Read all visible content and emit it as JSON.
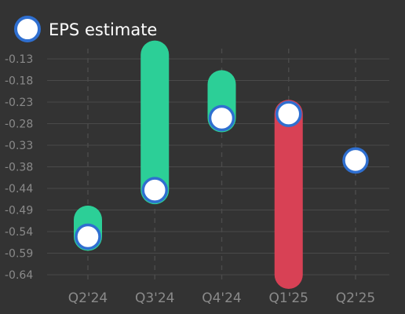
{
  "chart_data": {
    "type": "range-bar-scatter",
    "legend": {
      "label": "EPS estimate",
      "placement": "top-left"
    },
    "categories": [
      "Q2'24",
      "Q3'24",
      "Q4'24",
      "Q1'25",
      "Q2'25"
    ],
    "series": [
      {
        "name": "EPS estimate",
        "values": [
          -0.55,
          -0.44,
          -0.27,
          -0.26,
          -0.37
        ]
      }
    ],
    "actual": [
      -0.51,
      -0.12,
      -0.19,
      -0.64,
      null
    ],
    "yticks": [
      -0.13,
      -0.18,
      -0.23,
      -0.28,
      -0.33,
      -0.38,
      -0.44,
      -0.49,
      -0.54,
      -0.59,
      -0.64
    ],
    "ylim": [
      -0.665,
      -0.105
    ],
    "grid": true,
    "colors": {
      "background": "#333333",
      "grid": "#4a4a4a",
      "beat": "#2ccf97",
      "miss": "#d84155",
      "marker_fill": "#ffffff",
      "marker_stroke": "#2f6fd0",
      "tick_text": "#8a8a8a",
      "legend_text": "#ffffff"
    }
  }
}
